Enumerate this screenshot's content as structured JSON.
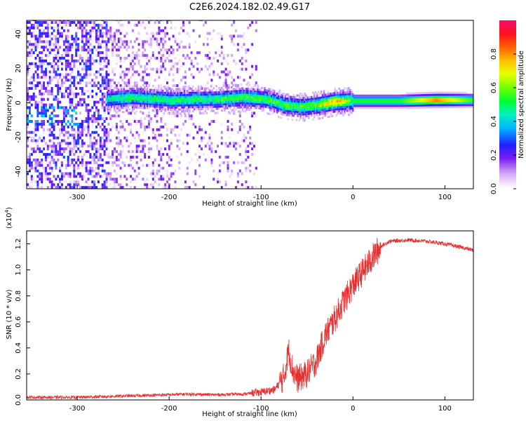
{
  "title": "C2E6.2024.182.02.49.G17",
  "chart_data": [
    {
      "type": "heatmap",
      "xlabel": "Height of straight line (km)",
      "ylabel": "Frequency (Hz)",
      "xlim": [
        -355,
        131
      ],
      "ylim": [
        -50,
        48
      ],
      "xticks": [
        -300,
        -200,
        -100,
        0,
        100
      ],
      "yticks": [
        -40,
        -20,
        0,
        20,
        40
      ],
      "colorbar": {
        "label": "Normalized spectral amplitude",
        "range": [
          0.0,
          1.0
        ],
        "ticks": [
          0.0,
          0.2,
          0.4,
          0.6,
          0.8
        ],
        "tick_labels": [
          "0.0",
          "0.2",
          "0.4",
          "0.6",
          "0.8"
        ]
      },
      "ridge": {
        "description_points": [
          {
            "x": -265,
            "freq": 1.5,
            "amp": 0.45
          },
          {
            "x": -240,
            "freq": 2.5,
            "amp": 0.5
          },
          {
            "x": -200,
            "freq": 1.0,
            "amp": 0.5
          },
          {
            "x": -150,
            "freq": 1.5,
            "amp": 0.5
          },
          {
            "x": -120,
            "freq": 2.5,
            "amp": 0.55
          },
          {
            "x": -95,
            "freq": 1.5,
            "amp": 0.55
          },
          {
            "x": -75,
            "freq": -2.0,
            "amp": 0.55
          },
          {
            "x": -55,
            "freq": -3.0,
            "amp": 0.55
          },
          {
            "x": -40,
            "freq": -2.0,
            "amp": 0.6
          },
          {
            "x": -20,
            "freq": 0.0,
            "amp": 0.8
          },
          {
            "x": 0,
            "freq": 0.5,
            "amp": 0.55
          },
          {
            "x": 50,
            "freq": 0.5,
            "amp": 0.55
          },
          {
            "x": 90,
            "freq": 1.0,
            "amp": 0.85
          },
          {
            "x": 131,
            "freq": 1.0,
            "amp": 0.55
          }
        ]
      }
    },
    {
      "type": "line",
      "xlabel": "Height of straight line (km)",
      "ylabel": "SNR (10 * v/v)",
      "y_multiplier_label": "(x10",
      "y_multiplier_exp": "4",
      "xlim": [
        -355,
        131
      ],
      "ylim": [
        0,
        1.3
      ],
      "xticks": [
        -300,
        -200,
        -100,
        0,
        100
      ],
      "yticks": [
        0.0,
        0.2,
        0.4,
        0.6,
        0.8,
        1.0,
        1.2
      ],
      "ytick_labels": [
        "0.0",
        "0.2",
        "0.4",
        "0.6",
        "0.8",
        "1.0",
        "1.2"
      ],
      "series": [
        {
          "color": "#e83030",
          "x": [
            -355,
            -300,
            -250,
            -200,
            -180,
            -150,
            -120,
            -100,
            -85,
            -75,
            -70,
            -65,
            -60,
            -50,
            -40,
            -30,
            -20,
            -10,
            0,
            10,
            20,
            30,
            40,
            60,
            80,
            100,
            120,
            131
          ],
          "y": [
            0.02,
            0.02,
            0.03,
            0.04,
            0.045,
            0.04,
            0.045,
            0.06,
            0.08,
            0.18,
            0.38,
            0.22,
            0.16,
            0.2,
            0.3,
            0.5,
            0.62,
            0.76,
            0.88,
            0.98,
            1.08,
            1.18,
            1.22,
            1.23,
            1.22,
            1.2,
            1.17,
            1.15
          ]
        }
      ]
    }
  ]
}
